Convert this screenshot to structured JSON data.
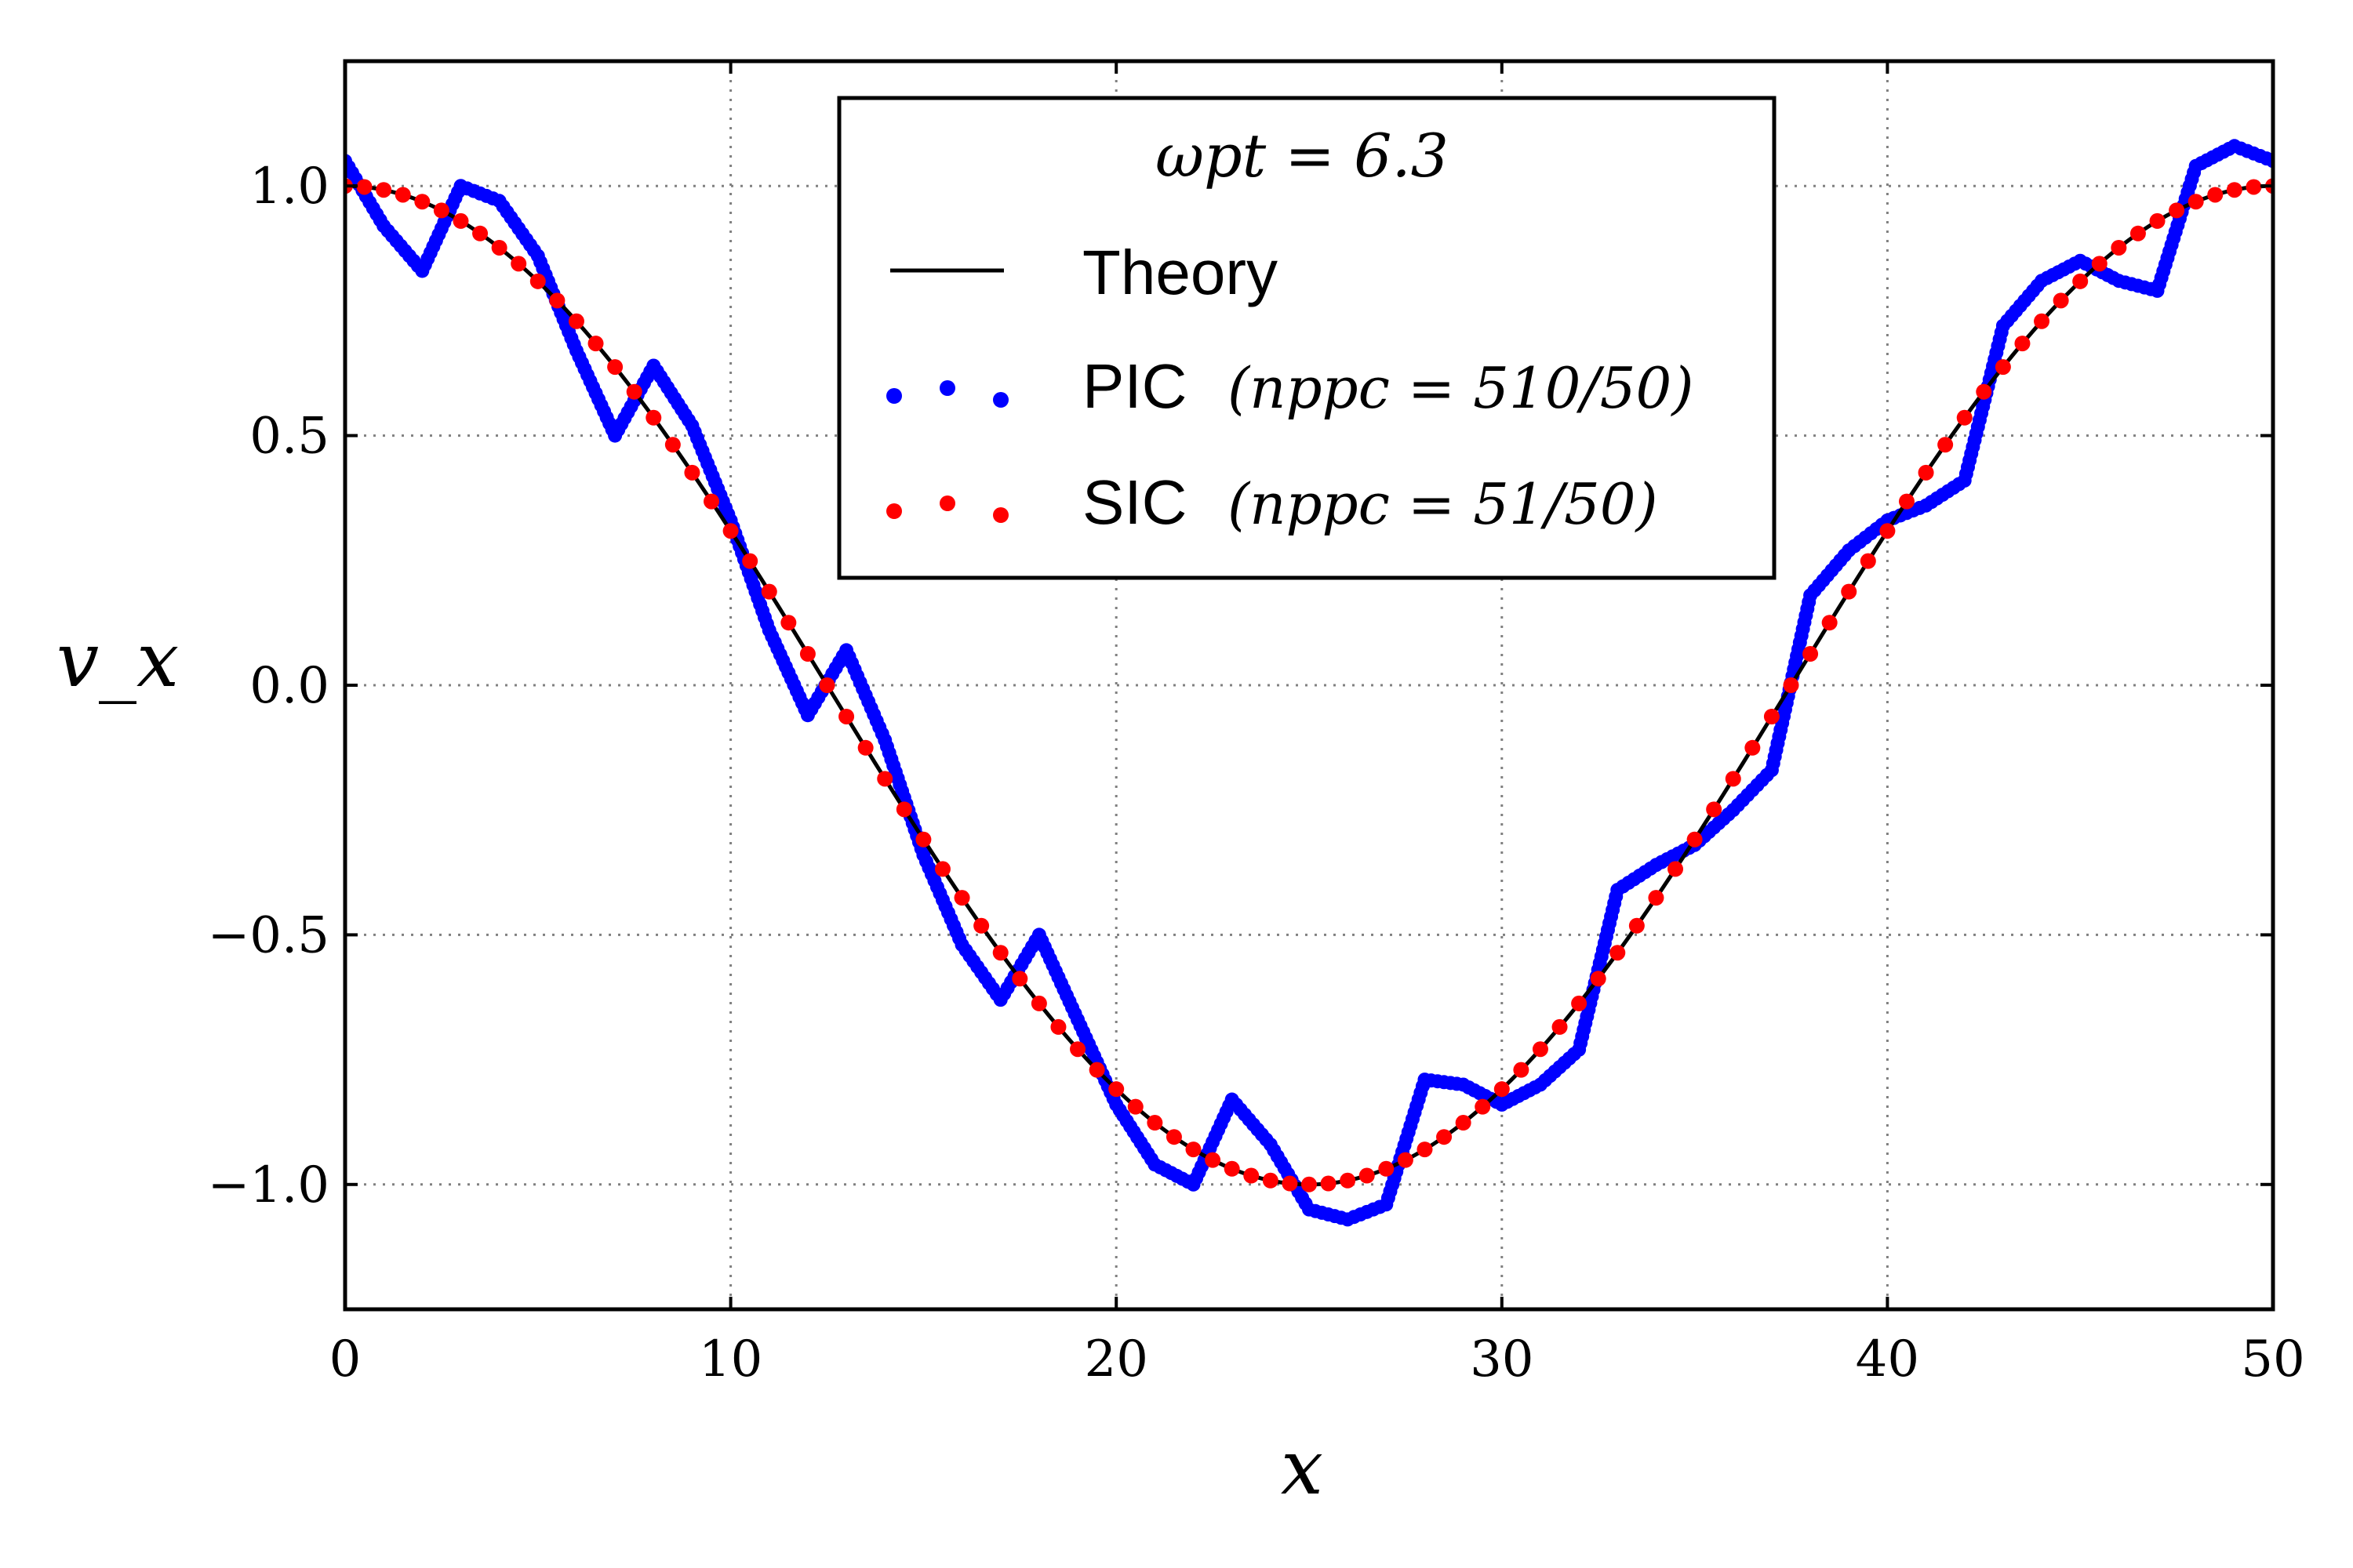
{
  "chart_data": {
    "type": "line",
    "title": "",
    "xlabel": "x",
    "ylabel": "v_x",
    "xlim": [
      0,
      50
    ],
    "ylim": [
      -1.25,
      1.25
    ],
    "grid": true,
    "x_ticks": [
      0,
      10,
      20,
      30,
      40,
      50
    ],
    "y_ticks": [
      1.0,
      0.5,
      0.0,
      -0.5,
      -1.0
    ],
    "x_tick_labels": [
      "0",
      "10",
      "20",
      "30",
      "40",
      "50"
    ],
    "y_tick_labels": [
      "1.0",
      "0.5",
      "0.0",
      "−0.5",
      "−1.0"
    ],
    "legend": {
      "title": "ωpt = 6.3",
      "placement": "top-center",
      "entries": [
        {
          "label": "Theory",
          "math": "",
          "color": "#000000",
          "style": "line"
        },
        {
          "label": "PIC",
          "math": "(nppc = 510/50)",
          "color": "#0000ff",
          "style": "dots"
        },
        {
          "label": "SIC",
          "math": "(nppc = 51/50)",
          "color": "#ff0000",
          "style": "dots"
        }
      ]
    },
    "series": [
      {
        "name": "Theory",
        "color": "#000000",
        "function": "cos(2*pi*x/50)",
        "x_range": [
          0,
          50
        ]
      },
      {
        "name": "PIC (nppc = 510/50)",
        "color": "#0000ff",
        "x": [
          0,
          1,
          2,
          3,
          4,
          5,
          6,
          7,
          8,
          9,
          10,
          11,
          12,
          13,
          14,
          15,
          16,
          17,
          18,
          19,
          20,
          21,
          22,
          23,
          24,
          25,
          26,
          27,
          28,
          29,
          30,
          31,
          32,
          33,
          34,
          35,
          36,
          37,
          38,
          39,
          40,
          41,
          42,
          43,
          44,
          45,
          46,
          47,
          48,
          49,
          50
        ],
        "y": [
          1.05,
          0.92,
          0.83,
          1.0,
          0.97,
          0.86,
          0.67,
          0.5,
          0.64,
          0.52,
          0.33,
          0.11,
          -0.06,
          0.07,
          -0.11,
          -0.34,
          -0.52,
          -0.63,
          -0.5,
          -0.67,
          -0.84,
          -0.96,
          -1.0,
          -0.83,
          -0.92,
          -1.05,
          -1.07,
          -1.04,
          -0.79,
          -0.8,
          -0.84,
          -0.8,
          -0.73,
          -0.41,
          -0.36,
          -0.32,
          -0.25,
          -0.17,
          0.18,
          0.27,
          0.33,
          0.36,
          0.41,
          0.72,
          0.81,
          0.85,
          0.81,
          0.79,
          1.04,
          1.08,
          1.05
        ]
      },
      {
        "name": "SIC (nppc = 51/50)",
        "color": "#ff0000",
        "function": "cos(2*pi*x/50)",
        "x_range": [
          0,
          50
        ],
        "points": 101
      }
    ]
  }
}
